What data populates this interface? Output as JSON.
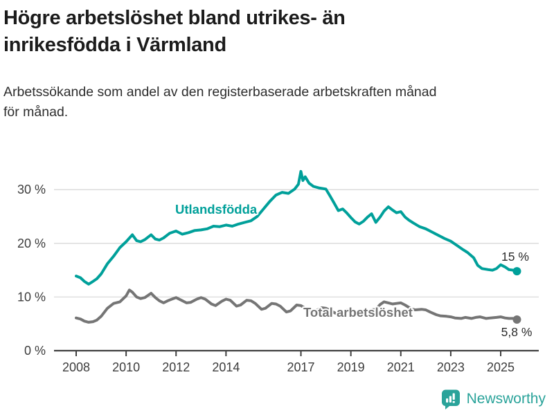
{
  "header": {
    "title_lines": [
      "Högre arbetslöshet bland utrikes- än",
      "inrikesfödda i Värmland"
    ],
    "subtitle_lines": [
      "Arbetssökande som andel av den registerbaserade arbetskraften månad",
      "för månad."
    ]
  },
  "footer": {
    "brand": "Newsworthy"
  },
  "colors": {
    "foreign_born_line": "#00a09a",
    "total_line": "#757575",
    "grid": "#d9d9d9",
    "axis": "#3f3f3f",
    "text": "#1c1c1c",
    "brand": "#2aa39a"
  },
  "chart_data": {
    "type": "line",
    "title": "Högre arbetslöshet bland utrikes- än inrikesfödda i Värmland",
    "subtitle": "Arbetssökande som andel av den registerbaserade arbetskraften månad för månad.",
    "unit": "%",
    "legend_position": "inline-labels",
    "x_axis": {
      "ticks": [
        2008,
        2010,
        2012,
        2014,
        2017,
        2019,
        2021,
        2023,
        2025
      ],
      "range": [
        2007.1,
        2026.2
      ]
    },
    "y_axis": {
      "gridlines": true,
      "range": [
        0,
        34.5
      ],
      "ticks": [
        {
          "value": 0,
          "label": "0 %"
        },
        {
          "value": 10,
          "label": "10 %"
        },
        {
          "value": 20,
          "label": "20 %"
        },
        {
          "value": 30,
          "label": "30 %"
        }
      ]
    },
    "series": [
      {
        "name": "Utlandsfödda",
        "color": "#00a09a",
        "end_label": "15 %",
        "end_value": 14.8,
        "points": [
          [
            2008.0,
            13.9
          ],
          [
            2008.17,
            13.6
          ],
          [
            2008.33,
            12.9
          ],
          [
            2008.5,
            12.4
          ],
          [
            2008.67,
            12.9
          ],
          [
            2008.83,
            13.4
          ],
          [
            2009.0,
            14.3
          ],
          [
            2009.25,
            16.2
          ],
          [
            2009.5,
            17.6
          ],
          [
            2009.75,
            19.2
          ],
          [
            2010.0,
            20.3
          ],
          [
            2010.25,
            21.6
          ],
          [
            2010.42,
            20.5
          ],
          [
            2010.58,
            20.3
          ],
          [
            2010.75,
            20.7
          ],
          [
            2011.0,
            21.6
          ],
          [
            2011.17,
            20.8
          ],
          [
            2011.33,
            20.6
          ],
          [
            2011.5,
            21.0
          ],
          [
            2011.75,
            21.9
          ],
          [
            2012.0,
            22.3
          ],
          [
            2012.25,
            21.7
          ],
          [
            2012.5,
            22.0
          ],
          [
            2012.75,
            22.4
          ],
          [
            2013.0,
            22.5
          ],
          [
            2013.25,
            22.7
          ],
          [
            2013.5,
            23.2
          ],
          [
            2013.75,
            23.1
          ],
          [
            2014.0,
            23.4
          ],
          [
            2014.25,
            23.2
          ],
          [
            2014.5,
            23.6
          ],
          [
            2014.75,
            23.9
          ],
          [
            2015.0,
            24.2
          ],
          [
            2015.25,
            25.0
          ],
          [
            2015.5,
            26.4
          ],
          [
            2015.75,
            27.8
          ],
          [
            2016.0,
            29.0
          ],
          [
            2016.25,
            29.5
          ],
          [
            2016.5,
            29.3
          ],
          [
            2016.75,
            30.1
          ],
          [
            2016.9,
            31.0
          ],
          [
            2017.0,
            33.4
          ],
          [
            2017.08,
            31.7
          ],
          [
            2017.17,
            32.4
          ],
          [
            2017.33,
            31.2
          ],
          [
            2017.5,
            30.6
          ],
          [
            2017.75,
            30.3
          ],
          [
            2018.0,
            30.1
          ],
          [
            2018.17,
            28.8
          ],
          [
            2018.33,
            27.5
          ],
          [
            2018.5,
            26.1
          ],
          [
            2018.67,
            26.4
          ],
          [
            2018.83,
            25.7
          ],
          [
            2019.0,
            24.8
          ],
          [
            2019.17,
            24.0
          ],
          [
            2019.33,
            23.6
          ],
          [
            2019.5,
            24.1
          ],
          [
            2019.67,
            24.9
          ],
          [
            2019.83,
            25.5
          ],
          [
            2020.0,
            23.9
          ],
          [
            2020.17,
            24.9
          ],
          [
            2020.33,
            26.0
          ],
          [
            2020.5,
            26.8
          ],
          [
            2020.67,
            26.2
          ],
          [
            2020.83,
            25.7
          ],
          [
            2021.0,
            25.9
          ],
          [
            2021.17,
            24.9
          ],
          [
            2021.33,
            24.3
          ],
          [
            2021.5,
            23.8
          ],
          [
            2021.75,
            23.1
          ],
          [
            2022.0,
            22.7
          ],
          [
            2022.25,
            22.1
          ],
          [
            2022.5,
            21.5
          ],
          [
            2022.75,
            20.9
          ],
          [
            2023.0,
            20.4
          ],
          [
            2023.25,
            19.6
          ],
          [
            2023.5,
            18.8
          ],
          [
            2023.67,
            18.3
          ],
          [
            2023.92,
            17.3
          ],
          [
            2024.08,
            15.9
          ],
          [
            2024.25,
            15.3
          ],
          [
            2024.5,
            15.1
          ],
          [
            2024.67,
            15.0
          ],
          [
            2024.83,
            15.3
          ],
          [
            2025.0,
            16.0
          ],
          [
            2025.17,
            15.6
          ],
          [
            2025.33,
            15.1
          ],
          [
            2025.5,
            15.0
          ],
          [
            2025.65,
            14.8
          ]
        ]
      },
      {
        "name": "Total arbetslöshet",
        "color": "#757575",
        "end_label": "5,8 %",
        "end_value": 5.8,
        "points": [
          [
            2008.0,
            6.1
          ],
          [
            2008.17,
            5.9
          ],
          [
            2008.33,
            5.5
          ],
          [
            2008.5,
            5.3
          ],
          [
            2008.67,
            5.4
          ],
          [
            2008.83,
            5.7
          ],
          [
            2009.0,
            6.4
          ],
          [
            2009.25,
            7.9
          ],
          [
            2009.5,
            8.8
          ],
          [
            2009.75,
            9.1
          ],
          [
            2010.0,
            10.2
          ],
          [
            2010.13,
            11.3
          ],
          [
            2010.25,
            10.9
          ],
          [
            2010.42,
            10.0
          ],
          [
            2010.58,
            9.7
          ],
          [
            2010.75,
            9.9
          ],
          [
            2011.0,
            10.7
          ],
          [
            2011.17,
            9.9
          ],
          [
            2011.33,
            9.3
          ],
          [
            2011.5,
            8.9
          ],
          [
            2011.67,
            9.3
          ],
          [
            2011.83,
            9.6
          ],
          [
            2012.0,
            9.9
          ],
          [
            2012.17,
            9.5
          ],
          [
            2012.42,
            8.9
          ],
          [
            2012.58,
            9.0
          ],
          [
            2012.83,
            9.6
          ],
          [
            2013.0,
            9.9
          ],
          [
            2013.17,
            9.6
          ],
          [
            2013.42,
            8.7
          ],
          [
            2013.58,
            8.4
          ],
          [
            2013.83,
            9.2
          ],
          [
            2014.0,
            9.6
          ],
          [
            2014.17,
            9.4
          ],
          [
            2014.42,
            8.3
          ],
          [
            2014.58,
            8.5
          ],
          [
            2014.83,
            9.4
          ],
          [
            2015.0,
            9.3
          ],
          [
            2015.17,
            8.8
          ],
          [
            2015.42,
            7.7
          ],
          [
            2015.58,
            7.9
          ],
          [
            2015.83,
            8.8
          ],
          [
            2016.0,
            8.7
          ],
          [
            2016.17,
            8.3
          ],
          [
            2016.42,
            7.2
          ],
          [
            2016.58,
            7.4
          ],
          [
            2016.83,
            8.5
          ],
          [
            2017.0,
            8.4
          ],
          [
            2017.17,
            7.9
          ],
          [
            2017.42,
            7.2
          ],
          [
            2017.58,
            7.4
          ],
          [
            2017.83,
            8.0
          ],
          [
            2018.0,
            7.9
          ],
          [
            2018.17,
            7.5
          ],
          [
            2018.42,
            6.9
          ],
          [
            2018.58,
            7.1
          ],
          [
            2018.83,
            7.6
          ],
          [
            2019.0,
            7.5
          ],
          [
            2019.17,
            7.2
          ],
          [
            2019.42,
            6.9
          ],
          [
            2019.58,
            7.1
          ],
          [
            2019.83,
            7.6
          ],
          [
            2020.0,
            7.7
          ],
          [
            2020.17,
            8.6
          ],
          [
            2020.33,
            9.1
          ],
          [
            2020.5,
            8.9
          ],
          [
            2020.67,
            8.7
          ],
          [
            2020.83,
            8.8
          ],
          [
            2021.0,
            8.9
          ],
          [
            2021.17,
            8.5
          ],
          [
            2021.42,
            7.8
          ],
          [
            2021.58,
            7.6
          ],
          [
            2021.83,
            7.7
          ],
          [
            2022.0,
            7.6
          ],
          [
            2022.17,
            7.2
          ],
          [
            2022.42,
            6.7
          ],
          [
            2022.58,
            6.5
          ],
          [
            2022.83,
            6.4
          ],
          [
            2023.0,
            6.3
          ],
          [
            2023.17,
            6.1
          ],
          [
            2023.42,
            6.0
          ],
          [
            2023.58,
            6.2
          ],
          [
            2023.83,
            6.0
          ],
          [
            2024.0,
            6.2
          ],
          [
            2024.17,
            6.3
          ],
          [
            2024.42,
            6.0
          ],
          [
            2024.58,
            6.1
          ],
          [
            2024.83,
            6.2
          ],
          [
            2025.0,
            6.3
          ],
          [
            2025.17,
            6.1
          ],
          [
            2025.33,
            6.0
          ],
          [
            2025.5,
            6.0
          ],
          [
            2025.65,
            5.8
          ]
        ]
      }
    ]
  }
}
